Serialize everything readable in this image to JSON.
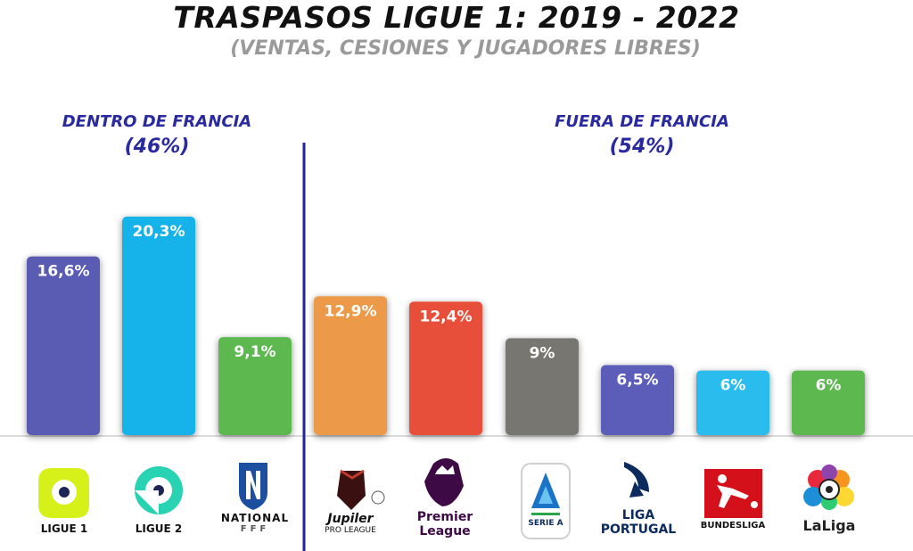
{
  "header": {
    "title": "TRASPASOS LIGUE 1: 2019 - 2022",
    "subtitle": "(VENTAS, CESIONES Y JUGADORES LIBRES)"
  },
  "groups": [
    {
      "name": "DENTRO DE FRANCIA",
      "share": "(46%)"
    },
    {
      "name": "FUERA DE FRANCIA",
      "share": "(54%)"
    }
  ],
  "logos": [
    {
      "name": "ligue-1",
      "line1": "LIGUE 1",
      "line2": ""
    },
    {
      "name": "ligue-2",
      "line1": "LIGUE 2",
      "line2": ""
    },
    {
      "name": "national",
      "line1": "NATIONAL",
      "line2": "FFF"
    },
    {
      "name": "jupiler-pro-league",
      "line1": "Jupiler",
      "line2": "PRO LEAGUE"
    },
    {
      "name": "premier-league",
      "line1": "Premier",
      "line2": "League"
    },
    {
      "name": "serie-a",
      "line1": "SERIE A",
      "line2": ""
    },
    {
      "name": "liga-portugal",
      "line1": "LIGA",
      "line2": "PORTUGAL"
    },
    {
      "name": "bundesliga",
      "line1": "BUNDESLIGA",
      "line2": ""
    },
    {
      "name": "laliga",
      "line1": "LaLiga",
      "line2": ""
    }
  ],
  "chart_data": {
    "type": "bar",
    "categories": [
      "LIGUE 1",
      "LIGUE 2",
      "NATIONAL",
      "Jupiler Pro League",
      "Premier League",
      "Serie A",
      "Liga Portugal",
      "Bundesliga",
      "LaLiga"
    ],
    "values": [
      16.6,
      20.3,
      9.1,
      12.9,
      12.4,
      9,
      6.5,
      6,
      6
    ],
    "labels": [
      "16,6%",
      "20,3%",
      "9,1%",
      "12,9%",
      "12,4%",
      "9%",
      "6,5%",
      "6%",
      "6%"
    ],
    "colors": [
      "#5a5cb4",
      "#19b2ea",
      "#5cb84f",
      "#ec9a4a",
      "#e8503a",
      "#777670",
      "#5c5db8",
      "#2cbcec",
      "#5cb84f"
    ],
    "ylim": [
      0,
      22
    ],
    "grid": false,
    "legend": "none"
  }
}
